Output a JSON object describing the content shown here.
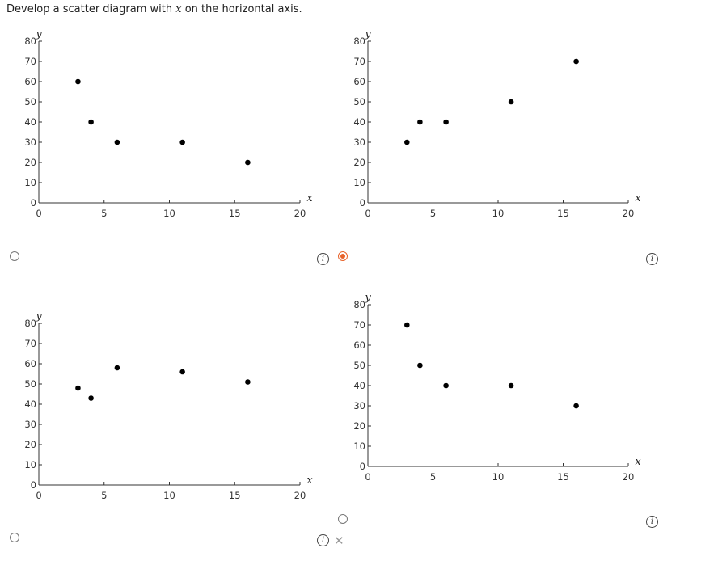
{
  "prompt": {
    "before": "Develop a scatter diagram with ",
    "var": "x",
    "after": " on the horizontal axis."
  },
  "chart_data": [
    {
      "type": "scatter",
      "title": "",
      "xlabel": "x",
      "ylabel": "y",
      "xlim": [
        0,
        20
      ],
      "ylim": [
        0,
        80
      ],
      "xticks": [
        0,
        5,
        10,
        15,
        20
      ],
      "yticks": [
        0,
        10,
        20,
        30,
        40,
        50,
        60,
        70,
        80
      ],
      "x": [
        3,
        4,
        6,
        11,
        16
      ],
      "y": [
        60,
        40,
        30,
        30,
        20
      ],
      "grid": false
    },
    {
      "type": "scatter",
      "title": "",
      "xlabel": "x",
      "ylabel": "y",
      "xlim": [
        0,
        20
      ],
      "ylim": [
        0,
        80
      ],
      "xticks": [
        0,
        5,
        10,
        15,
        20
      ],
      "yticks": [
        0,
        10,
        20,
        30,
        40,
        50,
        60,
        70,
        80
      ],
      "x": [
        3,
        4,
        6,
        11,
        16
      ],
      "y": [
        30,
        40,
        40,
        50,
        70
      ],
      "grid": false
    },
    {
      "type": "scatter",
      "title": "",
      "xlabel": "x",
      "ylabel": "y",
      "xlim": [
        0,
        20
      ],
      "ylim": [
        0,
        80
      ],
      "xticks": [
        0,
        5,
        10,
        15,
        20
      ],
      "yticks": [
        0,
        10,
        20,
        30,
        40,
        50,
        60,
        70,
        80
      ],
      "x": [
        3,
        4,
        6,
        11,
        16
      ],
      "y": [
        48,
        43,
        58,
        56,
        51
      ],
      "grid": false
    },
    {
      "type": "scatter",
      "title": "",
      "xlabel": "x",
      "ylabel": "y",
      "xlim": [
        0,
        20
      ],
      "ylim": [
        0,
        80
      ],
      "xticks": [
        0,
        5,
        10,
        15,
        20
      ],
      "yticks": [
        0,
        10,
        20,
        30,
        40,
        50,
        60,
        70,
        80
      ],
      "x": [
        3,
        4,
        6,
        11,
        16
      ],
      "y": [
        70,
        50,
        40,
        40,
        30
      ],
      "grid": false
    }
  ],
  "options": [
    {
      "selected": false,
      "info_label": "i",
      "marked_incorrect": false
    },
    {
      "selected": true,
      "info_label": "i",
      "marked_incorrect": false
    },
    {
      "selected": false,
      "info_label": "i",
      "marked_incorrect": true
    },
    {
      "selected": false,
      "info_label": "i",
      "marked_incorrect": false
    }
  ],
  "colors": {
    "selected_accent": "#e8642c",
    "point": "#000000",
    "axis": "#333333",
    "incorrect_mark": "#999999"
  },
  "icons": {
    "info": "info-icon",
    "incorrect": "x-mark-icon"
  },
  "incorrect_symbol": "✕"
}
